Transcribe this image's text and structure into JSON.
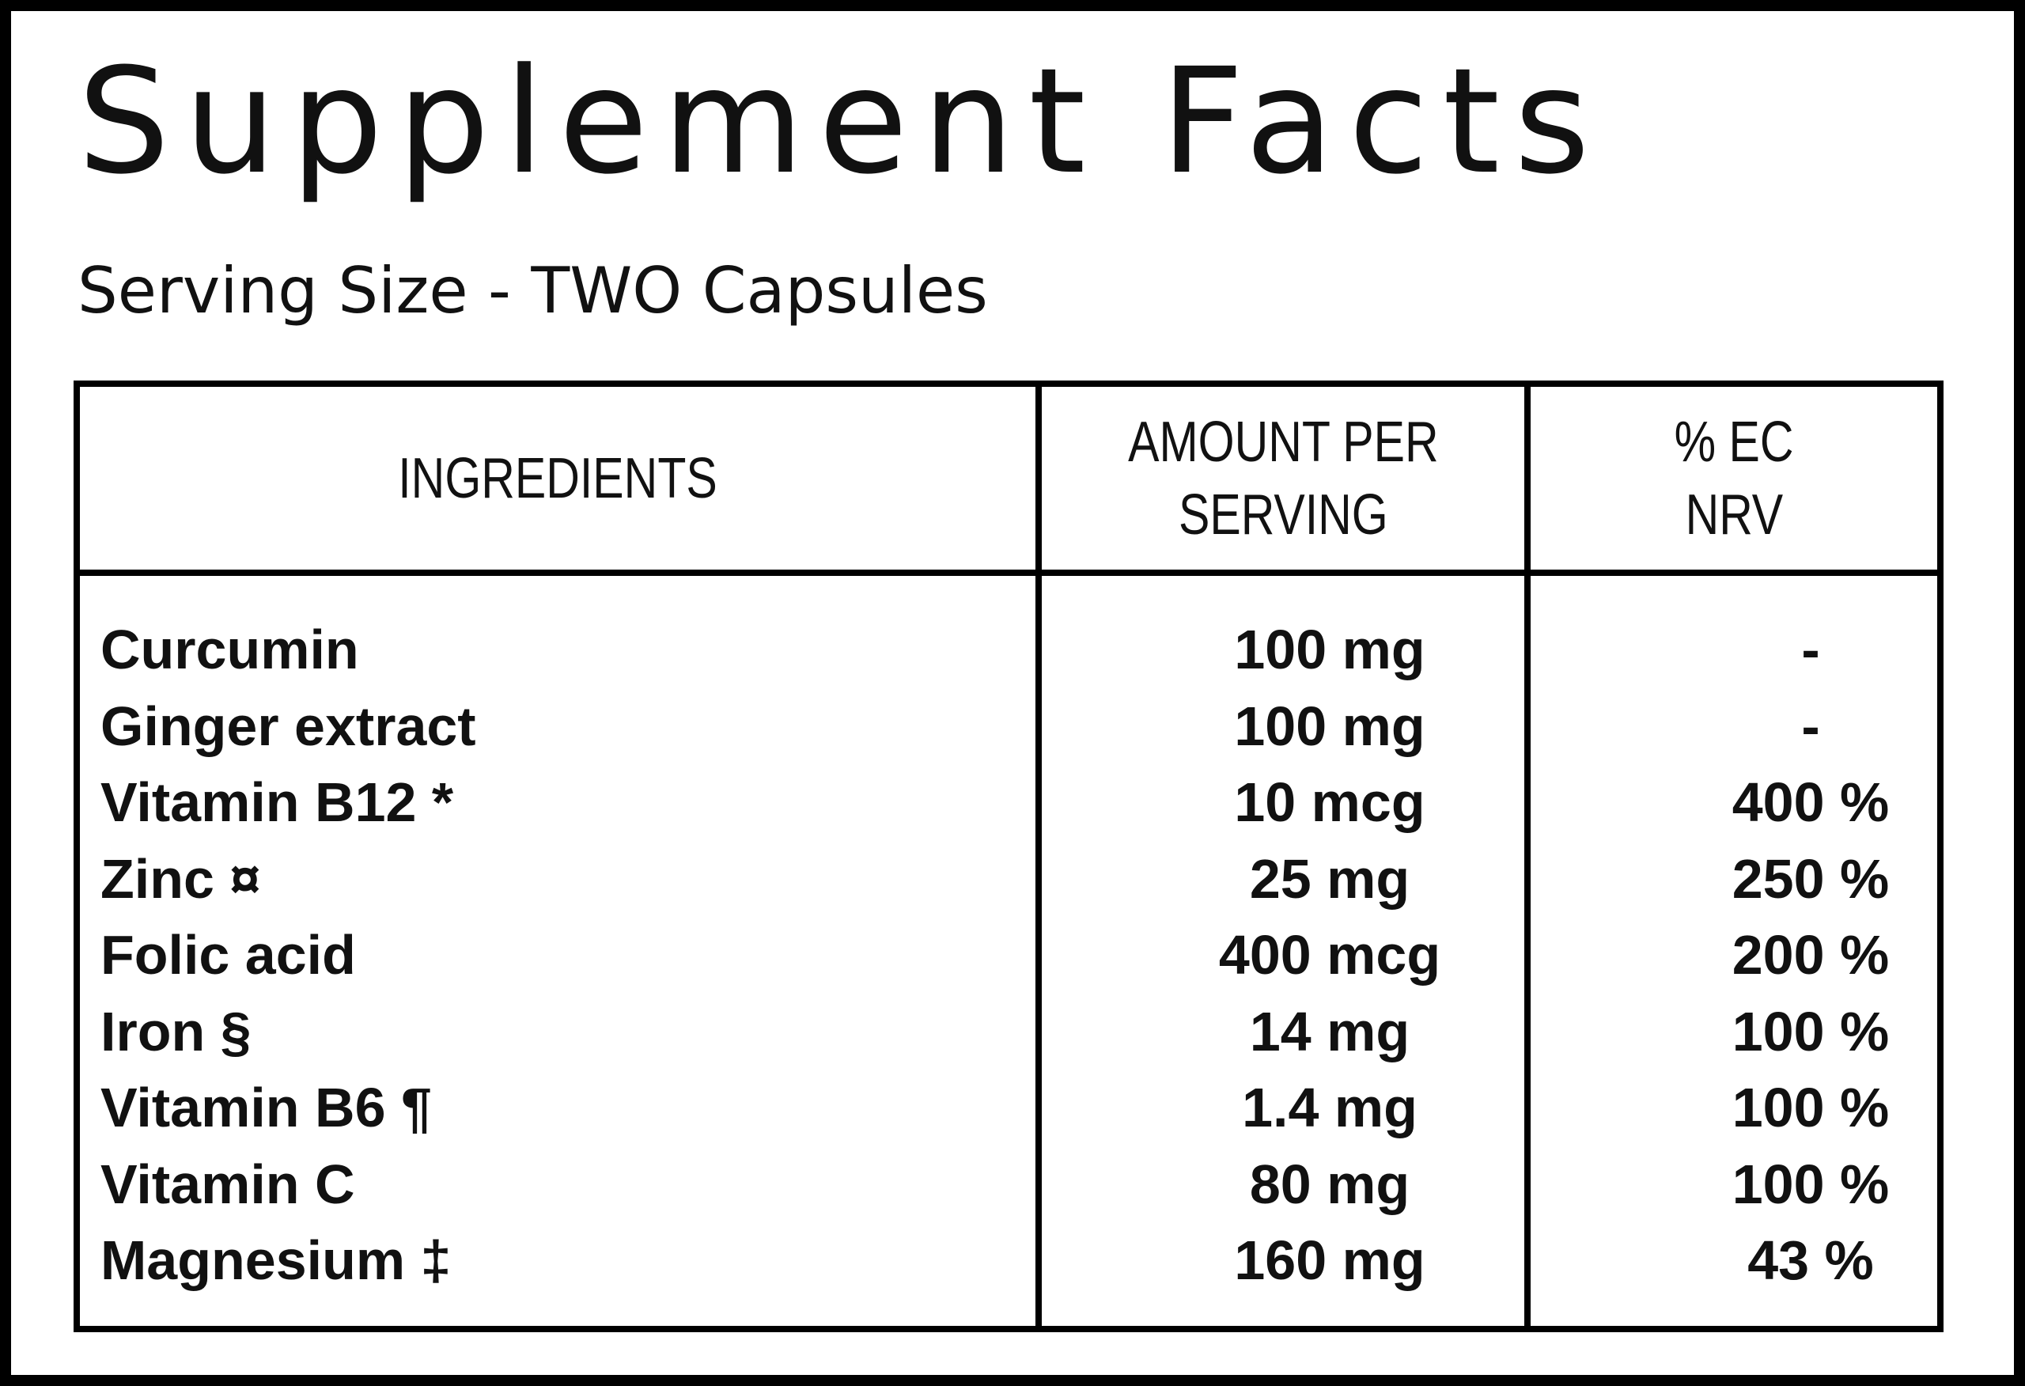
{
  "header": {
    "title": "Supplement Facts",
    "subtitle": "Serving Size - TWO Capsules"
  },
  "table": {
    "columns": [
      [
        "INGREDIENTS"
      ],
      [
        "AMOUNT PER",
        "SERVING"
      ],
      [
        "% EC",
        "NRV"
      ]
    ],
    "rows": [
      [
        "Curcumin",
        "100 mg",
        "-"
      ],
      [
        "Ginger extract",
        "100 mg",
        "-"
      ],
      [
        "Vitamin B12 *",
        "10 mcg",
        "400 %"
      ],
      [
        "Zinc ¤",
        "25 mg",
        "250 %"
      ],
      [
        "Folic acid",
        "400 mcg",
        "200 %"
      ],
      [
        "Iron §",
        "14 mg",
        "100 %"
      ],
      [
        "Vitamin B6 ¶",
        "1.4 mg",
        "100 %"
      ],
      [
        "Vitamin C",
        "80 mg",
        "100 %"
      ],
      [
        "Magnesium ‡",
        "160 mg",
        "43 %"
      ]
    ]
  }
}
